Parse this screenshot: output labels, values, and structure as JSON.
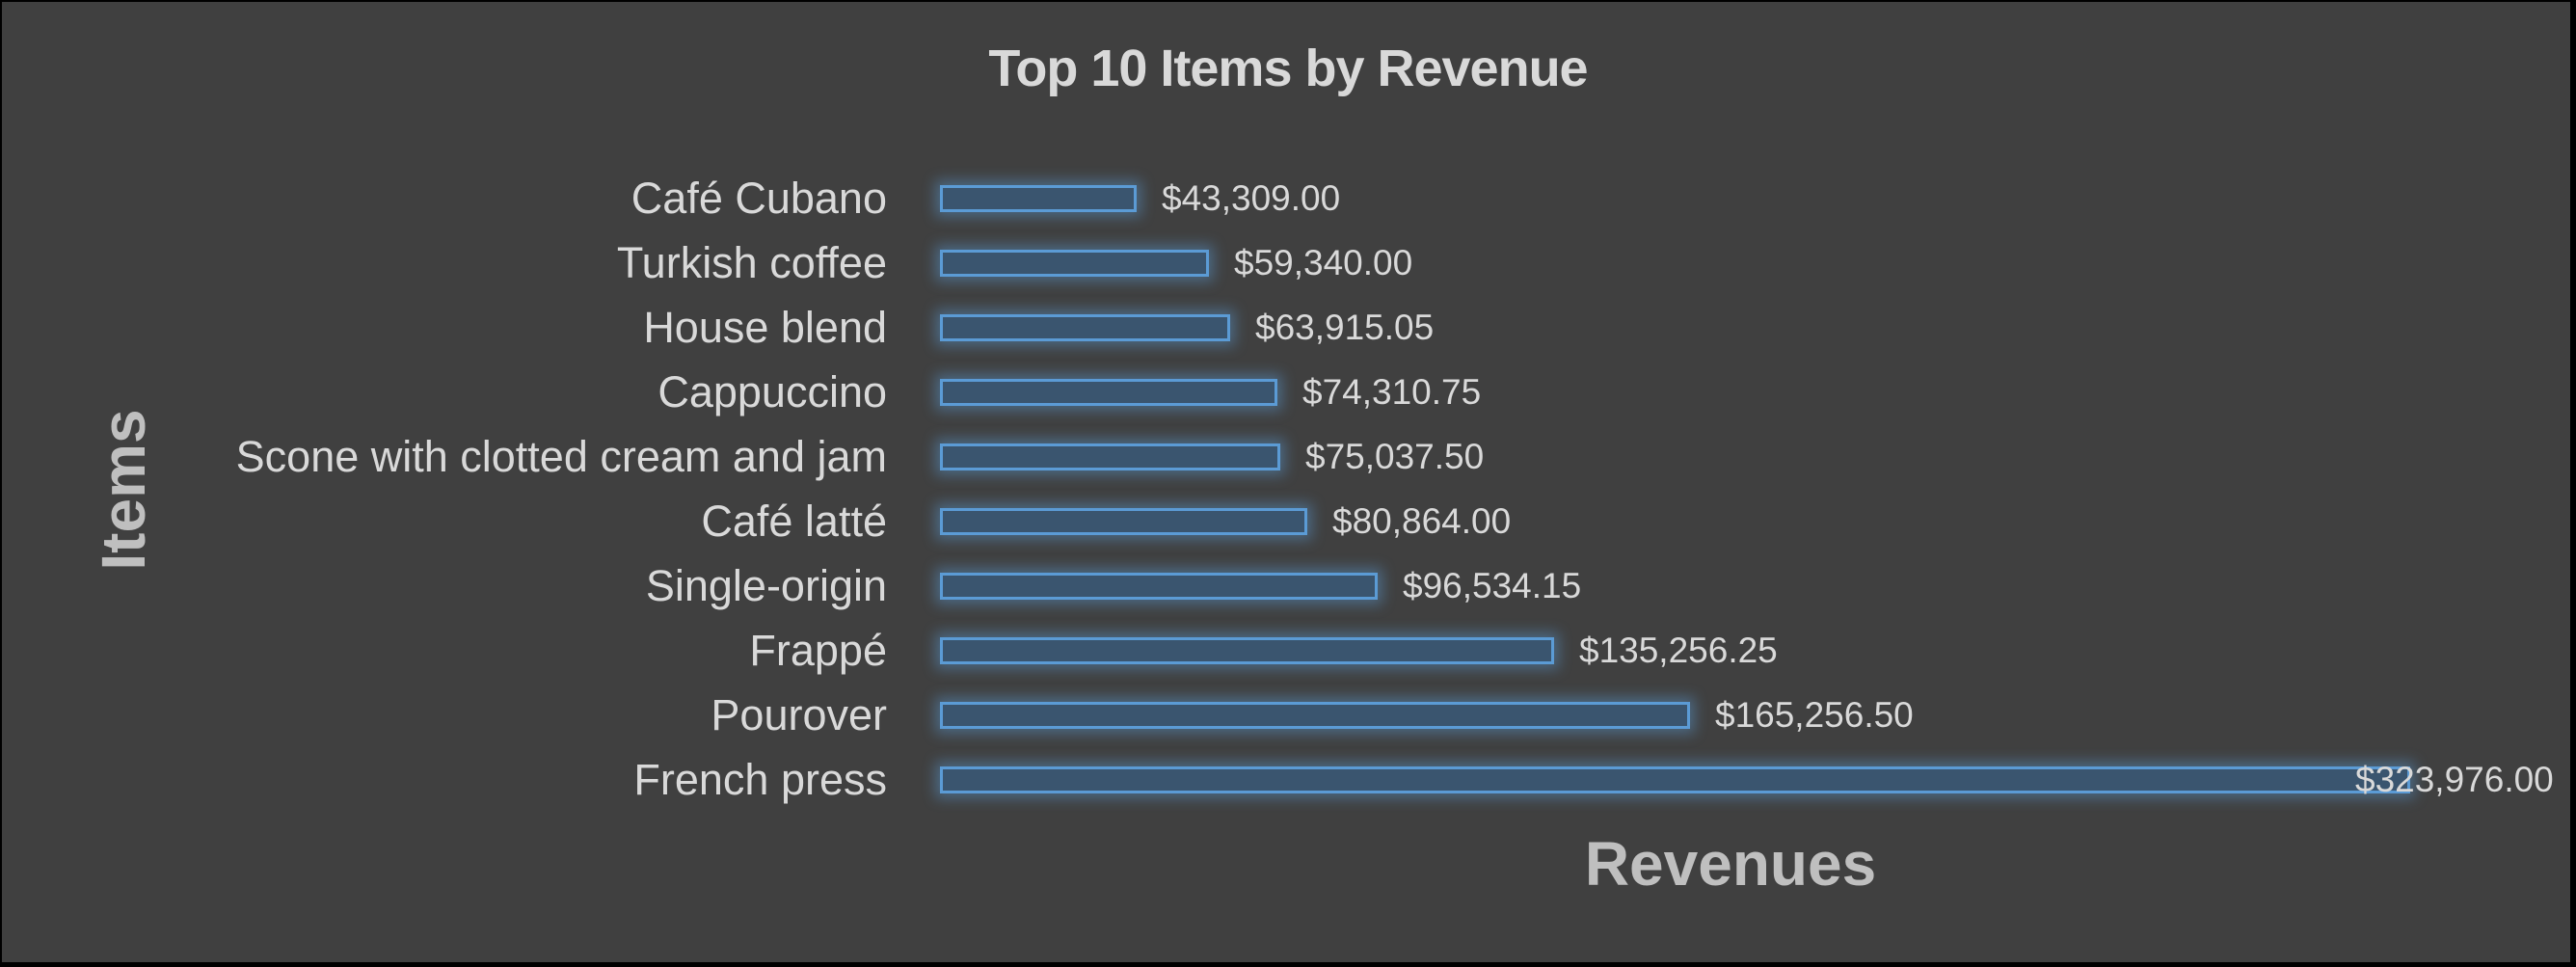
{
  "chart_data": {
    "type": "bar",
    "orientation": "horizontal",
    "title": "Top 10 Items by Revenue",
    "xlabel": "Revenues",
    "ylabel": "Items",
    "categories": [
      "Café Cubano",
      "Turkish coffee",
      "House blend",
      "Cappuccino",
      "Scone with clotted cream and jam",
      "Café latté",
      "Single-origin",
      "Frappé",
      "Pourover",
      "French press"
    ],
    "values": [
      43309.0,
      59340.0,
      63915.05,
      74310.75,
      75037.5,
      80864.0,
      96534.15,
      135256.25,
      165256.5,
      323976.0
    ],
    "data_labels": [
      "$43,309.00",
      "$59,340.00",
      "$63,915.05",
      "$74,310.75",
      "$75,037.50",
      "$80,864.00",
      "$96,534.15",
      "$135,256.25",
      "$165,256.50",
      "$323,976.00"
    ],
    "grid": false,
    "legend": null,
    "xaxis_visible": false,
    "colors": {
      "background": "#404040",
      "bar_fill": "#3a556f",
      "bar_border": "#5b9bd5",
      "text": "#d9d9d9",
      "axis_title": "#bfbfbf"
    }
  }
}
